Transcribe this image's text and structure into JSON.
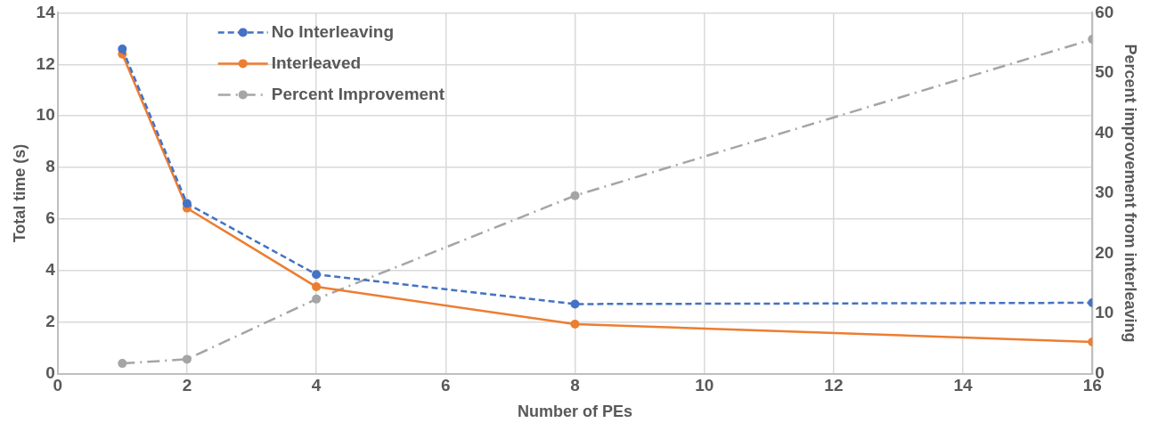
{
  "chart_data": {
    "type": "line",
    "xlabel": "Number of PEs",
    "ylabel": "Total time (s)",
    "y2label": "Percent improvement from interleaving",
    "xlim": [
      0,
      16
    ],
    "xticks": [
      0,
      2,
      4,
      6,
      8,
      10,
      12,
      14,
      16
    ],
    "ylim": [
      0,
      14
    ],
    "yticks": [
      0,
      2,
      4,
      6,
      8,
      10,
      12,
      14
    ],
    "y2lim": [
      0,
      60
    ],
    "y2ticks": [
      0,
      10,
      20,
      30,
      40,
      50,
      60
    ],
    "grid": true,
    "legend": "top left",
    "marker": "circle",
    "series": [
      {
        "name": "No Interleaving",
        "color": "#4472c4",
        "line_style": "dashed",
        "x": [
          1,
          2,
          4,
          8,
          16
        ],
        "values": [
          12.6,
          6.6,
          3.85,
          2.7,
          2.75
        ]
      },
      {
        "name": "Interleaved",
        "color": "#ed7d31",
        "line_style": "solid",
        "x": [
          1,
          2,
          4,
          8,
          16
        ],
        "values": [
          12.4,
          6.42,
          3.37,
          1.92,
          1.23
        ]
      },
      {
        "name": "Percent Improvement",
        "color": "#a5a5a5",
        "line_style": "dashdot",
        "axis": "y2",
        "x": [
          1,
          2,
          4,
          8,
          16
        ],
        "values": [
          1.7,
          2.4,
          12.4,
          29.6,
          55.6
        ]
      }
    ]
  }
}
